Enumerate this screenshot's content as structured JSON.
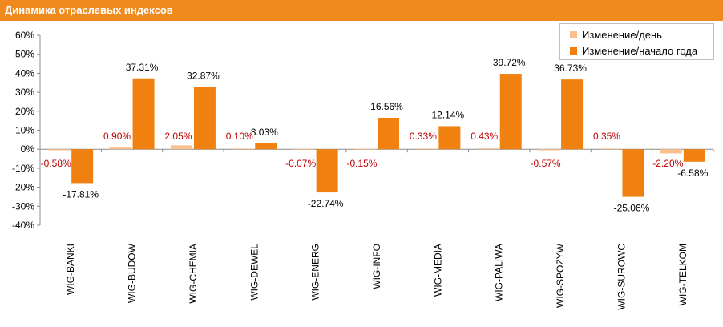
{
  "header": {
    "title": "Динамика отраслевых индексов"
  },
  "colors": {
    "header_bg": "#f08a1e",
    "daily": "#f9c08e",
    "ytd": "#f0800f",
    "daily_label": "#c00000",
    "ytd_label": "#000000"
  },
  "chart_data": {
    "type": "bar",
    "title": "Динамика отраслевых индексов",
    "categories": [
      "WIG-BANKI",
      "WIG-BUDOW",
      "WIG-CHEMIA",
      "WIG-DEWEL",
      "WIG-ENERG",
      "WIG-INFO",
      "WIG-MEDIA",
      "WIG-PALIWA",
      "WIG-SPOZYW",
      "WIG-SUROWC",
      "WIG-TELKOM"
    ],
    "series": [
      {
        "name": "Изменение/день",
        "values": [
          -0.58,
          0.9,
          2.05,
          0.1,
          -0.07,
          -0.15,
          0.33,
          0.43,
          -0.57,
          0.35,
          -2.2
        ],
        "labels": [
          "-0.58%",
          "0.90%",
          "2.05%",
          "0.10%",
          "-0.07%",
          "-0.15%",
          "0.33%",
          "0.43%",
          "-0.57%",
          "0.35%",
          "-2.20%"
        ]
      },
      {
        "name": "Изменение/начало года",
        "values": [
          -17.81,
          37.31,
          32.87,
          3.03,
          -22.74,
          16.56,
          12.14,
          39.72,
          36.73,
          -25.06,
          -6.58
        ],
        "labels": [
          "-17.81%",
          "37.31%",
          "32.87%",
          "3.03%",
          "-22.74%",
          "16.56%",
          "12.14%",
          "39.72%",
          "36.73%",
          "-25.06%",
          "-6.58%"
        ]
      }
    ],
    "yticks": [
      -40,
      -30,
      -20,
      -10,
      0,
      10,
      20,
      30,
      40,
      50,
      60
    ],
    "ytick_labels": [
      "-40%",
      "-30%",
      "-20%",
      "-10%",
      "0%",
      "10%",
      "20%",
      "30%",
      "40%",
      "50%",
      "60%"
    ],
    "ylim": [
      -40,
      60
    ],
    "grid": false,
    "legend_position": "top-right"
  }
}
